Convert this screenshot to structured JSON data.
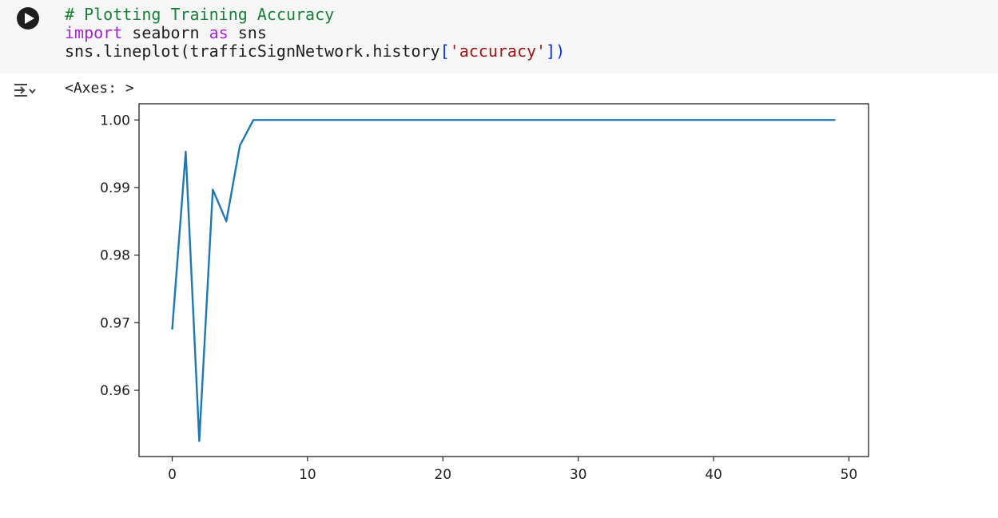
{
  "cell": {
    "code_lines": [
      {
        "parts": [
          {
            "cls": "c-comment",
            "text": "# Plotting Training Accuracy"
          }
        ]
      },
      {
        "parts": [
          {
            "cls": "c-keyword",
            "text": "import"
          },
          {
            "cls": "",
            "text": " seaborn "
          },
          {
            "cls": "c-keyword",
            "text": "as"
          },
          {
            "cls": "",
            "text": " sns"
          }
        ]
      },
      {
        "parts": [
          {
            "cls": "",
            "text": "sns.lineplot(trafficSignNetwork.history"
          },
          {
            "cls": "c-bracket",
            "text": "["
          },
          {
            "cls": "c-string",
            "text": "'accuracy'"
          },
          {
            "cls": "c-bracket",
            "text": "])"
          }
        ]
      }
    ],
    "run_icon": "play-circle-icon"
  },
  "output": {
    "toggle_icon": "output-toggle-icon",
    "text": "<Axes: >"
  },
  "chart_data": {
    "type": "line",
    "title": "",
    "xlabel": "",
    "ylabel": "",
    "xlim": [
      -2.45,
      51.45
    ],
    "ylim": [
      0.9502,
      1.0024
    ],
    "xticks": [
      0,
      10,
      20,
      30,
      40,
      50
    ],
    "yticks": [
      0.96,
      0.97,
      0.98,
      0.99,
      1.0
    ],
    "ytick_labels": [
      "0.96",
      "0.97",
      "0.98",
      "0.99",
      "1.00"
    ],
    "grid": false,
    "line_color": "#1f77b4",
    "series": [
      {
        "x": [
          0,
          1,
          2,
          3,
          4,
          5,
          6,
          7,
          8,
          9,
          10,
          11,
          12,
          13,
          14,
          15,
          16,
          17,
          18,
          19,
          20,
          21,
          22,
          23,
          24,
          25,
          26,
          27,
          28,
          29,
          30,
          31,
          32,
          33,
          34,
          35,
          36,
          37,
          38,
          39,
          40,
          41,
          42,
          43,
          44,
          45,
          46,
          47,
          48,
          49
        ],
        "values": [
          0.969,
          0.9953,
          0.9525,
          0.9897,
          0.985,
          0.9962,
          1.0,
          1.0,
          1.0,
          1.0,
          1.0,
          1.0,
          1.0,
          1.0,
          1.0,
          1.0,
          1.0,
          1.0,
          1.0,
          1.0,
          1.0,
          1.0,
          1.0,
          1.0,
          1.0,
          1.0,
          1.0,
          1.0,
          1.0,
          1.0,
          1.0,
          1.0,
          1.0,
          1.0,
          1.0,
          1.0,
          1.0,
          1.0,
          1.0,
          1.0,
          1.0,
          1.0,
          1.0,
          1.0,
          1.0,
          1.0,
          1.0,
          1.0,
          1.0,
          1.0
        ]
      }
    ]
  }
}
